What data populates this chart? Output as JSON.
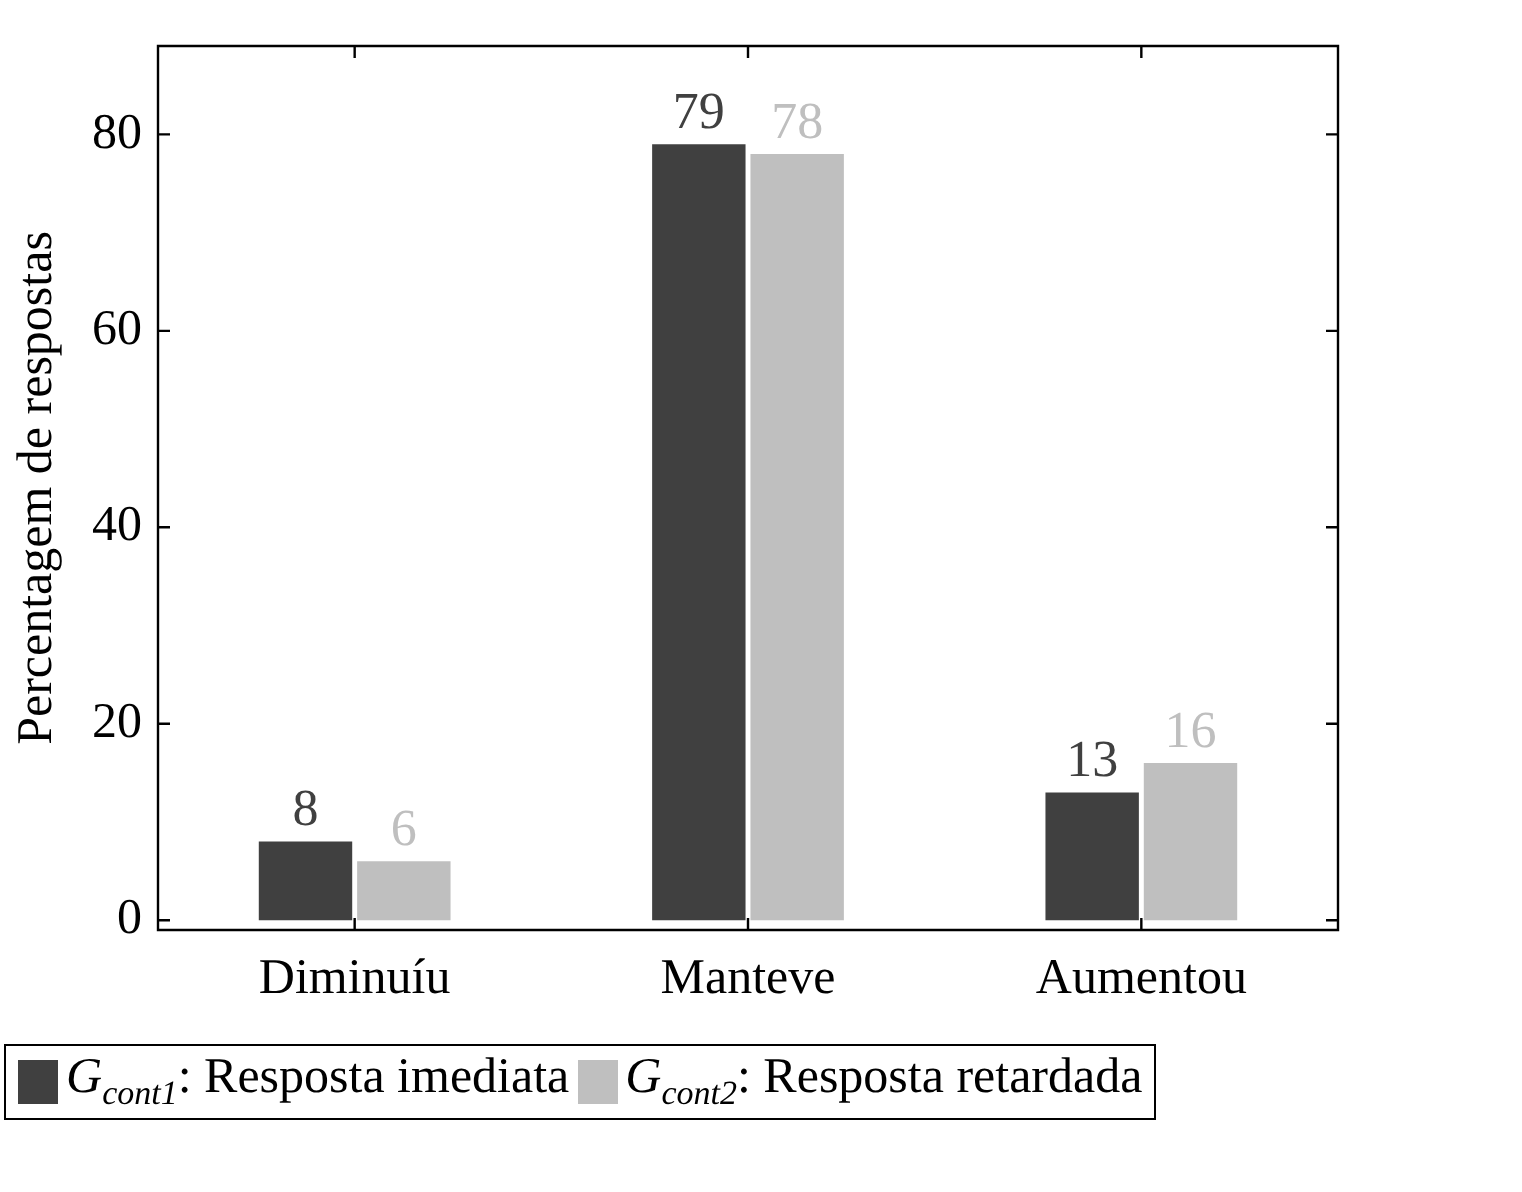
{
  "chart_data": {
    "type": "bar",
    "ylabel": "Percentagem de respostas",
    "categories": [
      "Diminuíu",
      "Manteve",
      "Aumentou"
    ],
    "series": [
      {
        "name": "G$_{cont1}$: Resposta imediata",
        "color": "#404040",
        "values": [
          8,
          79,
          13
        ]
      },
      {
        "name": "G$_{cont2}$: Resposta retardada",
        "color": "#bfbfbf",
        "values": [
          6,
          78,
          16
        ]
      }
    ],
    "ylim": [
      -1,
      89
    ],
    "yticks": [
      0,
      20,
      40,
      60,
      80
    ],
    "grid": false,
    "legend": "bottom",
    "data_labels": true
  }
}
